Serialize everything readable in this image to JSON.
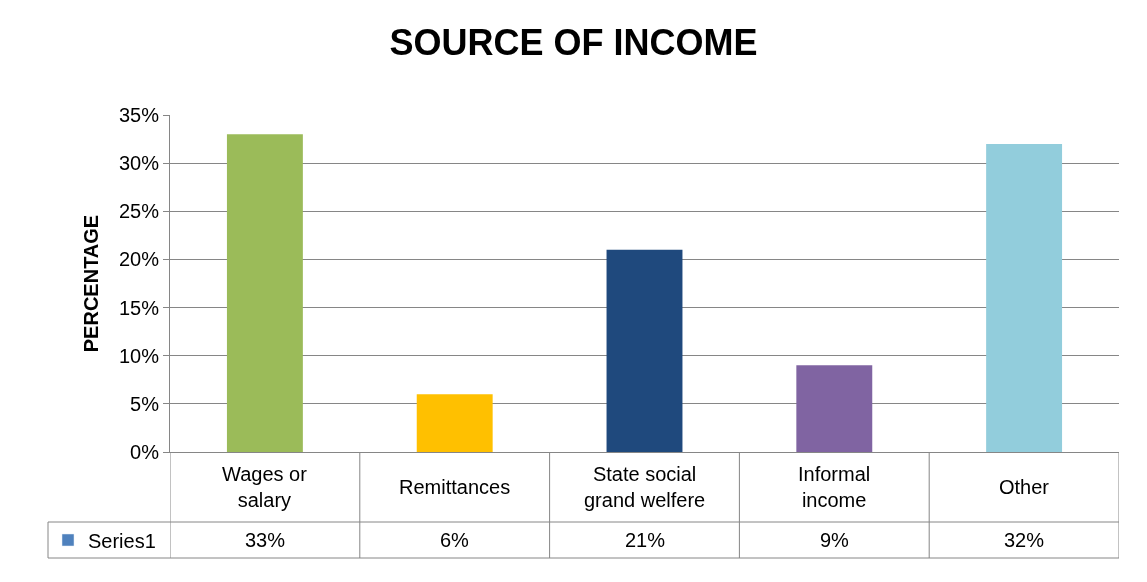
{
  "chart_data": {
    "type": "bar",
    "title": "SOURCE OF INCOME",
    "ylabel": "PERCENTAGE",
    "categories": [
      "Wages or salary",
      "Remittances",
      "State social grand welfere",
      "Informal income",
      "Other"
    ],
    "series": [
      {
        "name": "Series1",
        "color": "#4f81bd",
        "colors": [
          "#9bbb59",
          "#ffc000",
          "#1f497d",
          "#8064a2",
          "#92cddc"
        ],
        "values": [
          33,
          6,
          21,
          9,
          32
        ],
        "value_labels": [
          "33%",
          "6%",
          "21%",
          "9%",
          "32%"
        ]
      }
    ],
    "ylim": [
      0,
      35
    ],
    "yticks": [
      {
        "value": 0,
        "label": "0%"
      },
      {
        "value": 5,
        "label": "5%"
      },
      {
        "value": 10,
        "label": "10%"
      },
      {
        "value": 15,
        "label": "15%"
      },
      {
        "value": 20,
        "label": "20%"
      },
      {
        "value": 25,
        "label": "25%"
      },
      {
        "value": 30,
        "label": "30%"
      },
      {
        "value": 35,
        "label": "35%"
      }
    ],
    "grid": "y",
    "legend": "bottom left"
  }
}
